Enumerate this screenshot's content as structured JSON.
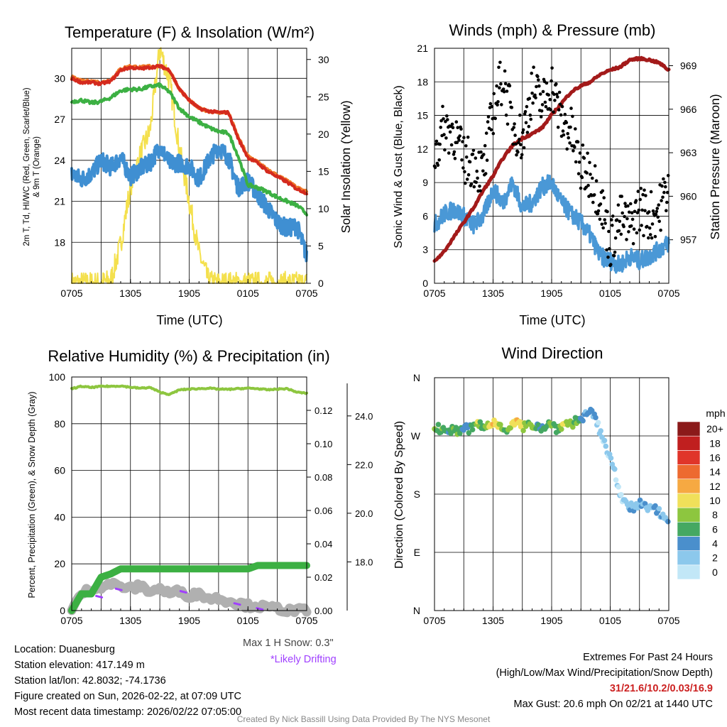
{
  "panels": {
    "temp": {
      "title": "Temperature (F) & Insolation (W/m²)",
      "ylabel_left_1": "2m T, Td, HI/WC (Red, Green, Scarlet/Blue)",
      "ylabel_left_2": "& 9m T (Orange)",
      "ylabel_right": "Solar Insolation (Yellow)",
      "xlabel": "Time (UTC)"
    },
    "wind": {
      "title": "Winds (mph) & Pressure (mb)",
      "ylabel_left": "Sonic Wind & Gust (Blue, Black)",
      "ylabel_right": "Station Pressure (Maroon)",
      "xlabel": "Time (UTC)"
    },
    "rh": {
      "title": "Relative Humidity (%) & Precipitation (in)",
      "ylabel_left": "Percent, Precipitation (Green), & Snow Depth (Gray)"
    },
    "dir": {
      "title": "Wind Direction",
      "ylabel_left": "Direction (Colored By Speed)",
      "colorbar_title": "mph"
    }
  },
  "colors": {
    "temp": "#d42a1e",
    "temp9m": "#f07a2a",
    "dewpoint": "#3cb043",
    "windchill": "#3f8fd2",
    "insolation": "#f4e04d",
    "wind": "#4a98d6",
    "gust": "#000000",
    "pressure": "#a31a1a",
    "rh": "#8dc63f",
    "precip": "#3cb043",
    "snow": "#b0b0b0",
    "drift": "#a040ff"
  },
  "chart_data": [
    {
      "type": "line",
      "name": "temperature-insolation",
      "title": "Temperature (F) & Insolation (W/m²)",
      "x_tick_labels": [
        "0705",
        "1305",
        "1905",
        "0105",
        "0705"
      ],
      "x_tick_hours": [
        0,
        6,
        12,
        18,
        24
      ],
      "xlim": [
        0,
        24
      ],
      "ylim_left": [
        15,
        32.2
      ],
      "yticks_left": [
        18,
        21,
        24,
        27,
        30
      ],
      "ylim_right": [
        0,
        31.5
      ],
      "yticks_right": [
        0,
        5,
        10,
        15,
        20,
        25,
        30
      ],
      "series": [
        {
          "name": "2m T",
          "axis": "left",
          "x": [
            0,
            1,
            2,
            3,
            4,
            5,
            6,
            7,
            8,
            9,
            10,
            11,
            12,
            13,
            14,
            15,
            16,
            17,
            18,
            19,
            20,
            21,
            22,
            23,
            24
          ],
          "values": [
            30.0,
            29.7,
            29.7,
            29.6,
            29.8,
            30.6,
            30.8,
            30.7,
            30.8,
            30.9,
            30.6,
            29.2,
            28.4,
            27.8,
            27.6,
            27.5,
            27.5,
            25.6,
            24.2,
            23.8,
            23.2,
            22.8,
            22.4,
            21.9,
            21.6
          ]
        },
        {
          "name": "9m T",
          "axis": "left",
          "x": [
            0,
            1,
            2,
            3,
            4,
            5,
            6,
            7,
            8,
            9,
            10,
            11,
            12,
            13,
            14,
            15,
            16,
            17,
            18,
            19,
            20,
            21,
            22,
            23,
            24
          ],
          "values": [
            30.1,
            29.8,
            29.8,
            29.7,
            29.9,
            30.7,
            30.9,
            30.8,
            30.9,
            30.9,
            30.6,
            29.2,
            28.4,
            27.8,
            27.6,
            27.5,
            27.5,
            25.7,
            24.3,
            23.9,
            23.3,
            22.9,
            22.5,
            22.0,
            21.7
          ]
        },
        {
          "name": "Dewpoint",
          "axis": "left",
          "x": [
            0,
            1,
            2,
            3,
            4,
            5,
            6,
            7,
            8,
            9,
            10,
            11,
            12,
            13,
            14,
            15,
            16,
            17,
            18,
            19,
            20,
            21,
            22,
            23,
            24
          ],
          "values": [
            28.3,
            28.4,
            28.2,
            28.3,
            28.6,
            29.1,
            29.2,
            29.2,
            29.4,
            29.5,
            29.0,
            27.8,
            27.2,
            26.8,
            26.4,
            26.1,
            26.0,
            24.3,
            22.2,
            22.0,
            21.7,
            21.3,
            21.0,
            20.7,
            20.1
          ]
        },
        {
          "name": "HI/WC",
          "axis": "left",
          "x": [
            0,
            1,
            2,
            3,
            4,
            5,
            6,
            7,
            8,
            9,
            10,
            11,
            12,
            13,
            14,
            15,
            16,
            17,
            18,
            19,
            20,
            21,
            22,
            23,
            24
          ],
          "values": [
            23.0,
            22.6,
            23.0,
            24.0,
            23.5,
            24.2,
            22.8,
            23.4,
            23.8,
            25.0,
            23.8,
            23.8,
            23.6,
            22.6,
            24.0,
            25.0,
            24.2,
            22.0,
            22.5,
            21.5,
            20.5,
            19.5,
            19.0,
            19.2,
            17.0
          ]
        },
        {
          "name": "Solar Insolation",
          "axis": "right",
          "x": [
            0,
            1,
            2,
            3,
            4,
            5,
            6,
            7,
            8,
            9,
            10,
            11,
            12,
            13,
            14,
            15,
            16,
            17,
            18,
            19,
            20,
            21,
            22,
            23,
            24
          ],
          "values": [
            0,
            0,
            0,
            0,
            0.4,
            5.2,
            13.0,
            17.2,
            20.5,
            31.5,
            27.0,
            18.0,
            11.0,
            4.0,
            0.2,
            0,
            0,
            0,
            0,
            0,
            0,
            0,
            0,
            0,
            0
          ]
        }
      ]
    },
    {
      "type": "scatter",
      "name": "winds-pressure",
      "title": "Winds (mph) & Pressure (mb)",
      "x_tick_labels": [
        "0705",
        "1305",
        "1905",
        "0105",
        "0705"
      ],
      "x_tick_hours": [
        0,
        6,
        12,
        18,
        24
      ],
      "xlim": [
        0,
        24
      ],
      "ylim_left": [
        0,
        21
      ],
      "yticks_left": [
        0,
        3,
        6,
        9,
        12,
        15,
        18,
        21
      ],
      "ylim_right": [
        954,
        970.2
      ],
      "yticks_right": [
        957,
        960,
        963,
        966,
        969
      ],
      "series": [
        {
          "name": "Sonic Wind",
          "axis": "left",
          "x": [
            0,
            1,
            2,
            3,
            4,
            5,
            6,
            7,
            8,
            9,
            10,
            11,
            12,
            13,
            14,
            15,
            16,
            17,
            18,
            19,
            20,
            21,
            22,
            23,
            24
          ],
          "values": [
            5.2,
            6.2,
            6.6,
            6.0,
            5.2,
            6.0,
            8.4,
            7.2,
            9.0,
            6.8,
            7.2,
            8.6,
            9.0,
            7.2,
            6.2,
            5.4,
            4.2,
            2.4,
            2.0,
            1.6,
            2.4,
            2.0,
            2.4,
            3.0,
            3.6
          ]
        },
        {
          "name": "Gust",
          "axis": "left",
          "x": [
            0,
            1,
            2,
            3,
            4,
            5,
            6,
            7,
            8,
            9,
            10,
            11,
            12,
            13,
            14,
            15,
            16,
            17,
            18,
            19,
            20,
            21,
            22,
            23,
            24
          ],
          "values": [
            11.5,
            14.0,
            13.5,
            11.0,
            10.8,
            9.8,
            15.5,
            18.5,
            14.2,
            12.8,
            17.5,
            16.0,
            17.8,
            14.5,
            13.5,
            10.2,
            9.8,
            7.5,
            3.5,
            5.8,
            5.0,
            6.8,
            6.0,
            6.5,
            9.0
          ]
        },
        {
          "name": "Station Pressure",
          "axis": "right",
          "x": [
            0,
            1,
            2,
            3,
            4,
            5,
            6,
            7,
            8,
            9,
            10,
            11,
            12,
            13,
            14,
            15,
            16,
            17,
            18,
            19,
            20,
            21,
            22,
            23,
            24
          ],
          "values": [
            955.5,
            956.2,
            957.2,
            958.2,
            959.2,
            960.4,
            961.4,
            962.6,
            963.5,
            964.0,
            964.3,
            964.7,
            965.6,
            966.4,
            967.2,
            967.6,
            967.9,
            968.4,
            968.7,
            968.9,
            969.4,
            969.5,
            969.4,
            969.2,
            968.7
          ]
        }
      ]
    },
    {
      "type": "line",
      "name": "humidity-precipitation",
      "title": "Relative Humidity (%) & Precipitation (in)",
      "x_tick_labels": [
        "0705",
        "1305",
        "1905",
        "0105",
        "0705"
      ],
      "x_tick_hours": [
        0,
        6,
        12,
        18,
        24
      ],
      "xlim": [
        0,
        24
      ],
      "ylim_left": [
        0,
        100
      ],
      "yticks_left": [
        0,
        20,
        40,
        60,
        80,
        100
      ],
      "ylim_right_precip": [
        0,
        0.14
      ],
      "yticks_right_precip": [
        "0.00",
        "0.02",
        "0.04",
        "0.06",
        "0.08",
        "0.10",
        "0.12"
      ],
      "yticks_right_snow": [
        "18.0",
        "20.0",
        "22.0",
        "24.0"
      ],
      "snow_axis_range": [
        16.0,
        25.6
      ],
      "series": [
        {
          "name": "Relative Humidity",
          "axis": "left",
          "x": [
            0,
            1,
            2,
            3,
            4,
            5,
            6,
            7,
            8,
            9,
            10,
            11,
            12,
            13,
            14,
            15,
            16,
            17,
            18,
            19,
            20,
            21,
            22,
            23,
            24
          ],
          "values": [
            95,
            96,
            95.5,
            96,
            96,
            96.2,
            95.6,
            95.2,
            95.5,
            93.5,
            92.5,
            94.5,
            94.8,
            95,
            95.2,
            94.8,
            94.7,
            95.0,
            95.2,
            95,
            94.5,
            94.8,
            95.0,
            93.5,
            93.0
          ]
        },
        {
          "name": "Precipitation",
          "axis": "right",
          "unit": "in",
          "x": [
            0,
            1,
            2,
            3,
            4,
            5,
            6,
            7,
            8,
            9,
            10,
            11,
            12,
            13,
            14,
            15,
            16,
            17,
            18,
            19,
            20,
            21,
            22,
            23,
            24
          ],
          "values": [
            0.0,
            0.01,
            0.01,
            0.02,
            0.022,
            0.025,
            0.025,
            0.025,
            0.025,
            0.025,
            0.025,
            0.025,
            0.025,
            0.025,
            0.025,
            0.025,
            0.025,
            0.025,
            0.025,
            0.027,
            0.027,
            0.027,
            0.027,
            0.027,
            0.027
          ]
        },
        {
          "name": "Snow Depth",
          "axis": "right",
          "unit": "in",
          "x": [
            0,
            1,
            2,
            3,
            4,
            5,
            6,
            7,
            8,
            9,
            10,
            11,
            12,
            13,
            14,
            15,
            16,
            17,
            18,
            19,
            20,
            21,
            22,
            23,
            24
          ],
          "values": [
            16.0,
            16.7,
            16.9,
            17.0,
            17.1,
            17.0,
            16.9,
            17.0,
            16.8,
            16.9,
            16.7,
            16.8,
            16.6,
            16.7,
            16.5,
            16.5,
            16.4,
            16.3,
            16.2,
            16.2,
            16.1,
            16.1,
            16.0,
            16.0,
            16.0
          ]
        }
      ]
    },
    {
      "type": "scatter",
      "name": "wind-direction",
      "title": "Wind Direction",
      "x_tick_labels": [
        "0705",
        "1305",
        "1905",
        "0105",
        "0705"
      ],
      "x_tick_hours": [
        0,
        6,
        12,
        18,
        24
      ],
      "xlim": [
        0,
        24
      ],
      "y_tick_labels": [
        "N",
        "E",
        "S",
        "W",
        "N"
      ],
      "ylim_deg": [
        0,
        360
      ],
      "series": [
        {
          "name": "Direction",
          "x": [
            0,
            0.5,
            1,
            1.5,
            2,
            2.5,
            3,
            3.5,
            4,
            4.5,
            5,
            5.5,
            6,
            6.5,
            7,
            7.5,
            8,
            8.5,
            9,
            9.5,
            10,
            10.5,
            11,
            11.5,
            12,
            12.5,
            13,
            13.5,
            14,
            14.5,
            15,
            15.5,
            16,
            16.5,
            17,
            17.5,
            18,
            18.5,
            19,
            19.5,
            20,
            20.5,
            21,
            21.5,
            22,
            22.5,
            23,
            23.5,
            24
          ],
          "values": [
            284,
            280,
            278,
            282,
            276,
            279,
            282,
            280,
            285,
            288,
            282,
            286,
            290,
            288,
            285,
            281,
            287,
            291,
            284,
            283,
            289,
            286,
            283,
            288,
            287,
            282,
            285,
            290,
            289,
            293,
            296,
            302,
            304,
            300,
            272,
            255,
            240,
            216,
            175,
            165,
            160,
            158,
            166,
            160,
            158,
            163,
            152,
            145,
            138
          ],
          "speeds": [
            7,
            6,
            6,
            5,
            7,
            5,
            4,
            4,
            6,
            8,
            5,
            9,
            10,
            8,
            7,
            6,
            9,
            10,
            8,
            7,
            8,
            5,
            4,
            6,
            7,
            5,
            8,
            9,
            7,
            6,
            4,
            3,
            4,
            2,
            1,
            1,
            1,
            1,
            0,
            2,
            3,
            2,
            2,
            3,
            2,
            4,
            3,
            2,
            3
          ]
        }
      ],
      "colorbar": {
        "labels": [
          "0",
          "2",
          "4",
          "6",
          "8",
          "10",
          "12",
          "14",
          "16",
          "18",
          "20+"
        ],
        "colors": [
          "#c2e7f7",
          "#8cc8ec",
          "#4a8fcc",
          "#45a862",
          "#8dc63f",
          "#f0e05a",
          "#f6a942",
          "#ed6a30",
          "#e0352a",
          "#c01f1f",
          "#8b1a1a"
        ]
      }
    }
  ],
  "snow_note": {
    "max_1h": "Max 1 H Snow: 0.3\"",
    "drifting": "*Likely Drifting"
  },
  "info": {
    "location": "Location: Duanesburg",
    "elevation": "Station elevation: 417.149 m",
    "latlon": "Station lat/lon: 42.8032; -74.1736",
    "created": "Figure created on Sun, 2026-02-22, at 07:09 UTC",
    "recent": "Most recent data timestamp: 2026/02/22 07:05:00"
  },
  "extremes": {
    "heading": "Extremes For Past 24 Hours",
    "legend": "(High/Low/Max Wind/Precipitation/Snow Depth)",
    "values": "31/21.6/10.2/0.03/16.9",
    "max_gust": "Max Gust: 20.6 mph On 02/21 at 1440 UTC"
  },
  "credit": "Created By Nick Bassill Using Data Provided By The NYS Mesonet"
}
